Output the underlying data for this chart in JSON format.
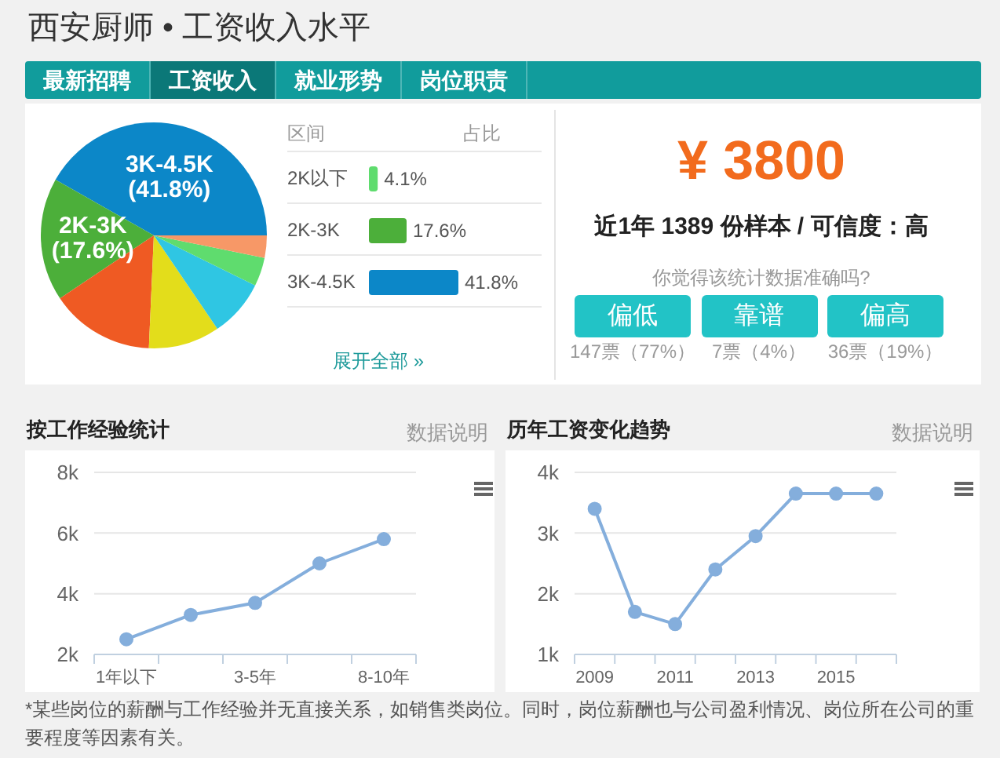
{
  "chart_data": [
    {
      "type": "other",
      "title": "西安厨师 • 工资收入水平",
      "annotations": [
        "最新招聘",
        "工资收入",
        "就业形势",
        "岗位职责"
      ]
    },
    {
      "type": "pie",
      "categories": [
        "3K-4.5K",
        "2K-3K",
        null,
        null,
        null,
        null,
        null
      ],
      "values": [
        41.8,
        17.6,
        14.9,
        10.2,
        8.2,
        4.1,
        3.2
      ],
      "colors": [
        "#0c87c8",
        "#4caf3a",
        "#ef5a23",
        "#e3dd1b",
        "#2fc6e3",
        "#5fdc6e",
        "#f79867"
      ],
      "value_labels": [
        "(41.8%)",
        "(17.6%)",
        null,
        null,
        null,
        null,
        null
      ]
    },
    {
      "type": "bar",
      "orientation": "horizontal",
      "ylabel": "区间",
      "xlabel": "占比",
      "categories": [
        "2K以下",
        "2K-3K",
        "3K-4.5K"
      ],
      "values": [
        4.1,
        17.6,
        41.8
      ],
      "colors": [
        "#5fdc6e",
        "#4caf3a",
        "#0c87c8"
      ],
      "value_labels": [
        "4.1%",
        "17.6%",
        "41.8%"
      ],
      "annotations": [
        "展开全部 »"
      ]
    },
    {
      "type": "other",
      "title": "¥ 3800",
      "subtitle": "近1年 1389 份样本 / 可信度：高",
      "annotations": [
        "你觉得该统计数据准确吗?",
        "偏低",
        "靠谱",
        "偏高",
        "147票（77%）",
        "7票（4%）",
        "36票（19%）"
      ]
    },
    {
      "type": "line",
      "title": "按工作经验统计",
      "categories": [
        "1年以下",
        null,
        "3-5年",
        null,
        "8-10年"
      ],
      "values": [
        2500,
        3300,
        3700,
        5000,
        5800
      ],
      "color": "#84aedc",
      "ylim": [
        2000,
        8000
      ],
      "yticks": [
        {
          "value": 2000,
          "label": "2k"
        },
        {
          "value": 4000,
          "label": "4k"
        },
        {
          "value": 6000,
          "label": "6k"
        },
        {
          "value": 8000,
          "label": "8k"
        }
      ],
      "grid": "y",
      "marker": "circle",
      "line_style": "solid",
      "annotations": [
        "数据说明"
      ]
    },
    {
      "type": "line",
      "title": "历年工资变化趋势",
      "categories": [
        "2009",
        null,
        "2011",
        null,
        "2013",
        null,
        "2015",
        null
      ],
      "values": [
        3400,
        1700,
        1500,
        2400,
        2950,
        3650,
        3650,
        3650
      ],
      "color": "#84aedc",
      "ylim": [
        1000,
        4000
      ],
      "yticks": [
        {
          "value": 1000,
          "label": "1k"
        },
        {
          "value": 2000,
          "label": "2k"
        },
        {
          "value": 3000,
          "label": "3k"
        },
        {
          "value": 4000,
          "label": "4k"
        }
      ],
      "grid": "y",
      "marker": "circle",
      "line_style": "solid",
      "annotations": [
        "数据说明"
      ]
    },
    {
      "type": "other",
      "annotations": [
        "*某些岗位的薪酬与工作经验并无直接关系，如销售类岗位。同时，岗位薪酬也与公司盈利情况、岗位所在公司的重要程度等因素有关。"
      ]
    }
  ]
}
